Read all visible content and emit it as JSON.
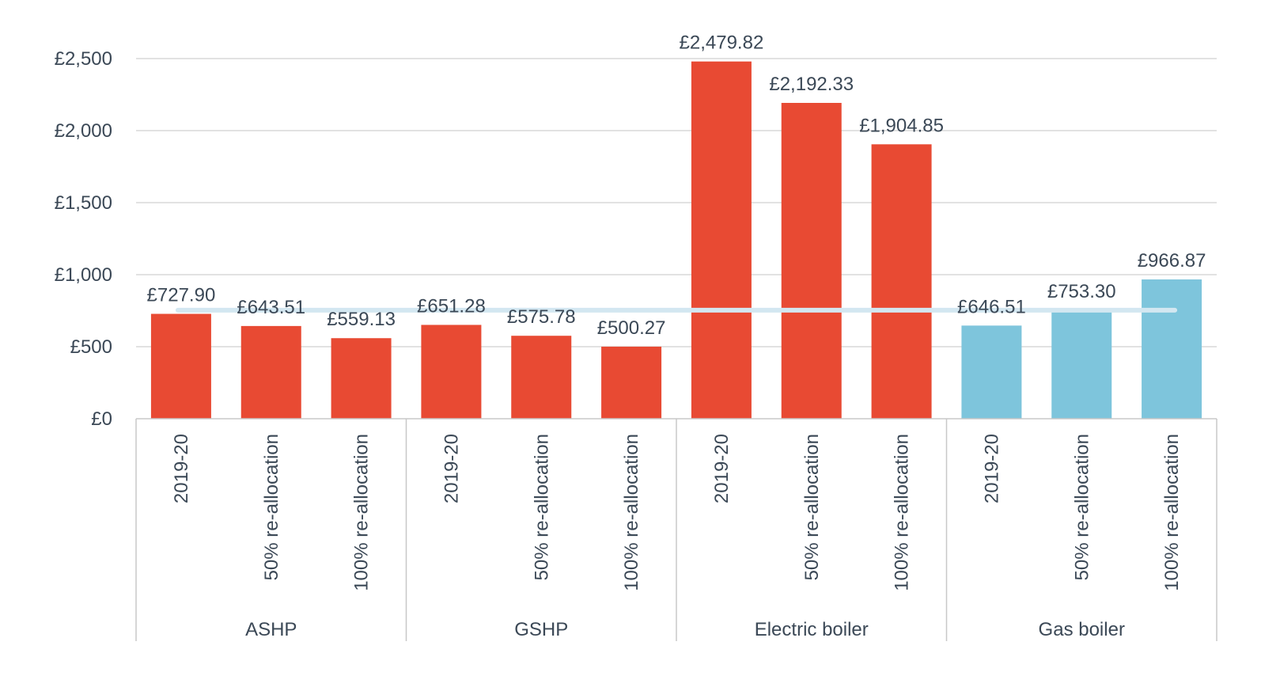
{
  "chart_data": {
    "type": "bar",
    "title": "",
    "xlabel": "",
    "ylabel": "",
    "ylim": [
      0,
      2500
    ],
    "yticks": [
      0,
      500,
      1000,
      1500,
      2000,
      2500
    ],
    "ytick_labels": [
      "£0",
      "£500",
      "£1,000",
      "£1,500",
      "£2,000",
      "£2,500"
    ],
    "grid": true,
    "legend": "none",
    "groups": [
      {
        "name": "ASHP",
        "categories": [
          "2019-20",
          "50% re-allocation",
          "100% re-allocation"
        ],
        "values": [
          727.9,
          643.51,
          559.13
        ],
        "value_labels": [
          "£727.90",
          "£643.51",
          "£559.13"
        ],
        "color": "#e84a33"
      },
      {
        "name": "GSHP",
        "categories": [
          "2019-20",
          "50% re-allocation",
          "100% re-allocation"
        ],
        "values": [
          651.28,
          575.78,
          500.27
        ],
        "value_labels": [
          "£651.28",
          "£575.78",
          "£500.27"
        ],
        "color": "#e84a33"
      },
      {
        "name": "Electric boiler",
        "categories": [
          "2019-20",
          "50% re-allocation",
          "100% re-allocation"
        ],
        "values": [
          2479.82,
          2192.33,
          1904.85
        ],
        "value_labels": [
          "£2,479.82",
          "£2,192.33",
          "£1,904.85"
        ],
        "color": "#e84a33"
      },
      {
        "name": "Gas boiler",
        "categories": [
          "2019-20",
          "50% re-allocation",
          "100% re-allocation"
        ],
        "values": [
          646.51,
          753.3,
          966.87
        ],
        "value_labels": [
          "£646.51",
          "£753.30",
          "£966.87"
        ],
        "color": "#7ec5dc"
      }
    ],
    "reference_line": {
      "value": 753.3,
      "color": "#d3e7f1"
    },
    "gridline_color": "#d9d9d9",
    "axis_color": "#c8c8c8"
  }
}
